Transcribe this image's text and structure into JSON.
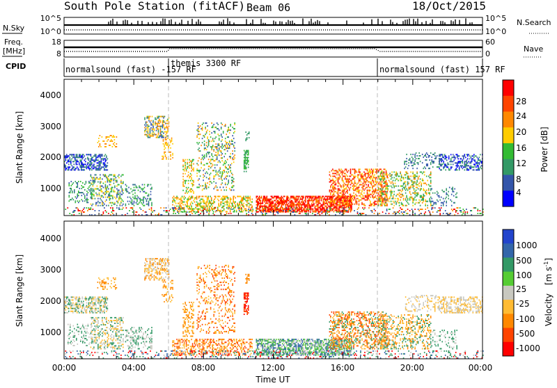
{
  "header": {
    "station": "South Pole Station (fitACF)",
    "beam": "Beam 06",
    "date": "18/Oct/2015"
  },
  "strip": {
    "nsky_label": "N.Sky",
    "nsky_ticks": [
      "10^5",
      "10^0"
    ],
    "nsearch_label": "N.Search",
    "nsearch_ticks": [
      "10^5",
      "10^0"
    ],
    "freq_label_line1": "Freq.",
    "freq_label_line2": "[MHz]",
    "freq_ticks": [
      "18",
      "8"
    ],
    "nave_label": "Nave",
    "nave_ticks": [
      "60",
      "0"
    ],
    "cpid_label": "CPID",
    "cpid_segments": [
      {
        "text": "normalsound (fast) -157 RF",
        "start_hour": 0
      },
      {
        "text": "themis 3300 RF",
        "start_hour": 6
      },
      {
        "text": "normalsound (fast) 157 RF",
        "start_hour": 18
      }
    ]
  },
  "chart_data": [
    {
      "type": "heatmap",
      "parameter": "Power",
      "ylabel": "Slant Range [km]",
      "ylim": [
        200,
        4600
      ],
      "yticks": [
        "1000",
        "2000",
        "3000",
        "4000"
      ],
      "xlim_hours": [
        0,
        24
      ],
      "colorbar_label": "Power [dB]",
      "colorbar_ticks": [
        "28",
        "24",
        "20",
        "16",
        "12",
        "8",
        "4"
      ],
      "colorbar_colors": [
        "#ff0000",
        "#ff4400",
        "#ff8800",
        "#ffcc00",
        "#33bb33",
        "#339966",
        "#3355aa",
        "#0000ff"
      ]
    },
    {
      "type": "heatmap",
      "parameter": "Velocity",
      "ylabel": "Slant Range [km]",
      "ylim": [
        200,
        4600
      ],
      "yticks": [
        "1000",
        "2000",
        "3000",
        "4000"
      ],
      "xlim_hours": [
        0,
        24
      ],
      "xlabel": "Time UT",
      "xticks": [
        "00:00",
        "04:00",
        "08:00",
        "12:00",
        "16:00",
        "20:00",
        "00:00"
      ],
      "colorbar_label": "Velocity",
      "colorbar_unit": "[m s",
      "colorbar_unit_exp": "-1",
      "colorbar_unit_close": "]",
      "colorbar_ticks": [
        "1000",
        "500",
        "100",
        "25",
        "-25",
        "-100",
        "-500",
        "-1000"
      ],
      "colorbar_colors": [
        "#2244cc",
        "#3366aa",
        "#339966",
        "#55cc33",
        "#c8c8c0",
        "#ffbb33",
        "#ff8800",
        "#ff4400",
        "#ff0000"
      ]
    }
  ]
}
